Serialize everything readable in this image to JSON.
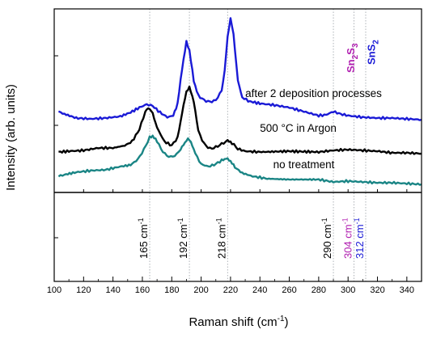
{
  "chart_data": {
    "type": "line",
    "xlabel": "Raman shift (cm",
    "xlabel_sup": "-1",
    "xlabel_end": ")",
    "ylabel": "Intensity (arb. units)",
    "xlim": [
      100,
      350
    ],
    "x_ticks": [
      100,
      120,
      140,
      160,
      180,
      200,
      220,
      240,
      260,
      280,
      300,
      320,
      340
    ],
    "grid": false,
    "series": [
      {
        "name": "after 2 deposition processes",
        "color": "#1a1ad6",
        "points": [
          [
            103,
            138
          ],
          [
            107,
            141
          ],
          [
            115,
            146
          ],
          [
            125,
            147
          ],
          [
            135,
            146
          ],
          [
            145,
            144
          ],
          [
            152,
            139
          ],
          [
            158,
            133
          ],
          [
            163,
            129
          ],
          [
            167,
            131
          ],
          [
            172,
            139
          ],
          [
            177,
            145
          ],
          [
            181,
            143
          ],
          [
            184,
            128
          ],
          [
            187,
            85
          ],
          [
            190,
            52
          ],
          [
            192,
            62
          ],
          [
            195,
            100
          ],
          [
            198,
            118
          ],
          [
            202,
            124
          ],
          [
            206,
            126
          ],
          [
            210,
            124
          ],
          [
            214,
            112
          ],
          [
            216,
            88
          ],
          [
            218,
            45
          ],
          [
            220,
            23
          ],
          [
            222,
            42
          ],
          [
            225,
            100
          ],
          [
            228,
            120
          ],
          [
            232,
            125
          ],
          [
            240,
            128
          ],
          [
            250,
            130
          ],
          [
            260,
            133
          ],
          [
            270,
            138
          ],
          [
            280,
            143
          ],
          [
            285,
            142
          ],
          [
            290,
            138
          ],
          [
            295,
            141
          ],
          [
            300,
            143
          ],
          [
            310,
            145
          ],
          [
            320,
            146
          ],
          [
            330,
            146
          ],
          [
            340,
            147
          ],
          [
            350,
            148
          ]
        ]
      },
      {
        "name": "500 °C in Argon",
        "color": "#000000",
        "points": [
          [
            103,
            188
          ],
          [
            110,
            187
          ],
          [
            120,
            186
          ],
          [
            130,
            183
          ],
          [
            140,
            183
          ],
          [
            148,
            180
          ],
          [
            153,
            175
          ],
          [
            158,
            160
          ],
          [
            162,
            138
          ],
          [
            164,
            133
          ],
          [
            167,
            140
          ],
          [
            170,
            158
          ],
          [
            175,
            175
          ],
          [
            180,
            180
          ],
          [
            184,
            170
          ],
          [
            187,
            140
          ],
          [
            190,
            113
          ],
          [
            192,
            108
          ],
          [
            195,
            125
          ],
          [
            198,
            162
          ],
          [
            202,
            178
          ],
          [
            206,
            184
          ],
          [
            210,
            182
          ],
          [
            214,
            178
          ],
          [
            218,
            174
          ],
          [
            221,
            177
          ],
          [
            225,
            184
          ],
          [
            230,
            187
          ],
          [
            240,
            188
          ],
          [
            260,
            187
          ],
          [
            280,
            188
          ],
          [
            290,
            186
          ],
          [
            300,
            185
          ],
          [
            310,
            186
          ],
          [
            320,
            187
          ],
          [
            330,
            189
          ],
          [
            340,
            189
          ],
          [
            350,
            190
          ]
        ]
      },
      {
        "name": "no treatment",
        "color": "#1a8585",
        "points": [
          [
            103,
            218
          ],
          [
            107,
            216
          ],
          [
            115,
            213
          ],
          [
            125,
            211
          ],
          [
            135,
            210
          ],
          [
            145,
            206
          ],
          [
            152,
            204
          ],
          [
            157,
            197
          ],
          [
            161,
            185
          ],
          [
            165,
            170
          ],
          [
            167,
            168
          ],
          [
            170,
            175
          ],
          [
            174,
            188
          ],
          [
            178,
            194
          ],
          [
            182,
            193
          ],
          [
            186,
            185
          ],
          [
            189,
            176
          ],
          [
            191,
            172
          ],
          [
            193,
            175
          ],
          [
            196,
            190
          ],
          [
            200,
            203
          ],
          [
            205,
            206
          ],
          [
            210,
            203
          ],
          [
            214,
            198
          ],
          [
            217,
            196
          ],
          [
            220,
            199
          ],
          [
            223,
            207
          ],
          [
            228,
            214
          ],
          [
            235,
            218
          ],
          [
            245,
            221
          ],
          [
            260,
            222
          ],
          [
            280,
            222
          ],
          [
            290,
            225
          ],
          [
            300,
            224
          ],
          [
            310,
            225
          ],
          [
            320,
            226
          ],
          [
            330,
            226
          ],
          [
            340,
            227
          ],
          [
            350,
            228
          ]
        ]
      }
    ],
    "series_labels": [
      {
        "text": "after 2 deposition processes",
        "x": 230,
        "y": 120
      },
      {
        "text": "500 °C in Argon",
        "x": 240,
        "y": 163
      },
      {
        "text": "no treatment",
        "x": 249,
        "y": 208
      }
    ],
    "peaks": [
      {
        "x": 165,
        "num": "165 cm",
        "sup": "-1",
        "color": "#000000"
      },
      {
        "x": 192,
        "num": "192 cm",
        "sup": "-1",
        "color": "#000000"
      },
      {
        "x": 218,
        "num": "218 cm",
        "sup": "-1",
        "color": "#000000"
      },
      {
        "x": 290,
        "num": "290 cm",
        "sup": "-1",
        "color": "#000000"
      },
      {
        "x": 304,
        "num": "304 cm",
        "sup": "-1",
        "color": "#b01eb0"
      },
      {
        "x": 312,
        "num": "312 cm",
        "sup": "-1",
        "color": "#1a1ad6"
      }
    ],
    "phase_labels": [
      {
        "parts": [
          "Sn",
          "2",
          "S",
          "3"
        ],
        "x": 302,
        "color": "#b01eb0"
      },
      {
        "parts": [
          "SnS",
          "2"
        ],
        "x": 316,
        "color": "#1a1ad6"
      }
    ]
  }
}
